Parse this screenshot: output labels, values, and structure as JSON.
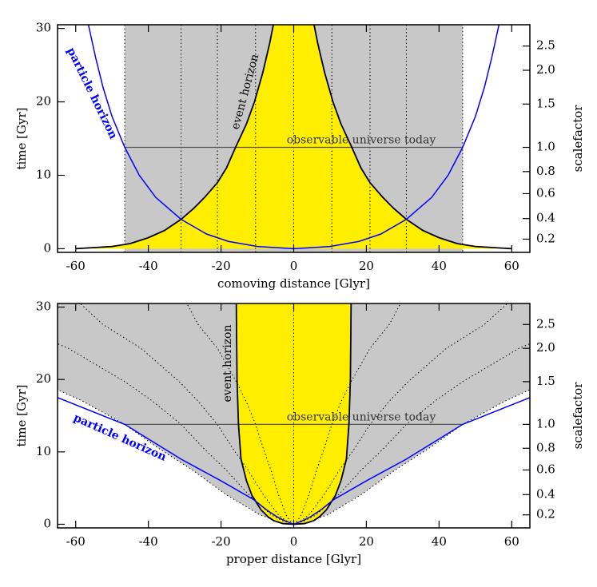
{
  "chart_data": [
    {
      "type": "line",
      "xlabel": "comoving distance [Glyr]",
      "ylabel": "time [Gyr]",
      "y2label": "scalefactor",
      "xlim": [
        -65,
        65
      ],
      "ylim": [
        -0.5,
        30.5
      ],
      "xticks": [
        -60,
        -40,
        -20,
        0,
        20,
        40,
        60
      ],
      "yticks": [
        0,
        10,
        20,
        30
      ],
      "y2ticks": [
        0.2,
        0.4,
        0.6,
        0.8,
        {
          "value": 1,
          "label": "1.0"
        },
        1.5,
        {
          "value": 2,
          "label": "2.0"
        },
        2.5
      ],
      "y2ticks_time": [
        1.3,
        4.1,
        7.5,
        10.5,
        13.8,
        19.7,
        24.3,
        27.6
      ],
      "shade": {
        "color": "#c8c8c8",
        "x": [
          -46.5,
          -46.5,
          46.5,
          46.5
        ],
        "y": [
          -0.5,
          30.5,
          30.5,
          -0.5
        ]
      },
      "worldlines": [
        {
          "x": [
            -31,
            -31
          ],
          "y": [
            -0.5,
            30.5
          ]
        },
        {
          "x": [
            -21,
            -21
          ],
          "y": [
            -0.5,
            30.5
          ]
        },
        {
          "x": [
            -10.5,
            -10.5
          ],
          "y": [
            -0.5,
            30.5
          ]
        },
        {
          "x": [
            0,
            0
          ],
          "y": [
            -0.5,
            30.5
          ]
        },
        {
          "x": [
            10.5,
            10.5
          ],
          "y": [
            -0.5,
            30.5
          ]
        },
        {
          "x": [
            21,
            21
          ],
          "y": [
            -0.5,
            30.5
          ]
        },
        {
          "x": [
            31,
            31
          ],
          "y": [
            -0.5,
            30.5
          ]
        }
      ],
      "today": {
        "label": "observable universe today",
        "x": [
          -46.5,
          46.5
        ],
        "y": 13.8
      },
      "series": [
        {
          "name": "event horizon",
          "color": "#000000",
          "fill": "#ffee00",
          "x": [
            -5.6,
            -6.6,
            -8.5,
            -10.8,
            -13,
            -16,
            -18.5,
            -21,
            -24.5,
            -27.5,
            -31,
            -35.5,
            -40,
            -45,
            -50,
            -60,
            null,
            60,
            50,
            45,
            40,
            35.5,
            31,
            27.5,
            24.5,
            21,
            18.5,
            16,
            13,
            10.8,
            8.5,
            6.6,
            5.6
          ],
          "y": [
            30.5,
            28,
            24,
            20,
            17,
            13.8,
            11,
            9,
            7,
            5.5,
            4,
            2.5,
            1.5,
            0.7,
            0.3,
            0,
            null,
            0,
            0.3,
            0.7,
            1.5,
            2.5,
            4,
            5.5,
            7,
            9,
            11,
            13.8,
            17,
            20,
            24,
            28,
            30.5
          ]
        },
        {
          "name": "particle horizon",
          "color": "#0000ff",
          "x": [
            -56.5,
            -54.5,
            -52.5,
            -50,
            -46.5,
            -42.5,
            -38,
            -31,
            -24,
            -18,
            -10,
            0,
            null,
            0,
            10,
            18,
            24,
            31,
            38,
            42.5,
            46.5,
            50,
            52.5,
            54.5,
            56.5
          ],
          "y": [
            30.5,
            26,
            22,
            18,
            13.8,
            10,
            7,
            4,
            2,
            1,
            0.3,
            0,
            null,
            0,
            0.3,
            1,
            2,
            4,
            7,
            10,
            13.8,
            18,
            22,
            26,
            30.5
          ]
        }
      ]
    },
    {
      "type": "line",
      "xlabel": "proper distance [Glyr]",
      "ylabel": "time [Gyr]",
      "y2label": "scalefactor",
      "xlim": [
        -65,
        65
      ],
      "ylim": [
        -0.5,
        30.5
      ],
      "xticks": [
        -60,
        -40,
        -20,
        0,
        20,
        40,
        60
      ],
      "yticks": [
        0,
        10,
        20,
        30
      ],
      "y2ticks": [
        0.2,
        0.4,
        0.6,
        0.8,
        {
          "value": 1,
          "label": "1.0"
        },
        1.5,
        {
          "value": 2,
          "label": "2.0"
        },
        2.5
      ],
      "y2ticks_time": [
        1.3,
        4.1,
        7.5,
        10.5,
        13.8,
        19.7,
        24.3,
        27.6
      ],
      "shade": {
        "color": "#c8c8c8",
        "x": [
          -69.8,
          -58.1,
          -46.5,
          -37.2,
          -27.9,
          -18.6,
          -9.3,
          -4.65,
          0,
          4.65,
          9.3,
          18.6,
          27.9,
          37.2,
          46.5,
          58.1,
          69.8,
          69.8,
          -69.8
        ],
        "y": [
          19.7,
          17,
          13.8,
          10.5,
          7.5,
          4.1,
          1.3,
          0.5,
          0,
          0.5,
          1.3,
          4.1,
          7.5,
          10.5,
          13.8,
          17,
          19.7,
          30.5,
          30.5
        ]
      },
      "worldlines": [
        {
          "x": [
            0,
            1.05,
            2.1,
            4.2,
            6.3,
            8.4,
            10.5,
            13.1,
            15.8,
            21,
            26.3,
            29.4
          ],
          "y": [
            0,
            0.5,
            1.3,
            4.1,
            7.5,
            10.5,
            13.8,
            17,
            19.7,
            24.3,
            27.6,
            30.5
          ]
        },
        {
          "x": [
            0,
            -1.05,
            -2.1,
            -4.2,
            -6.3,
            -8.4,
            -10.5,
            -13.1,
            -15.8,
            -21,
            -26.3,
            -29.4
          ],
          "y": [
            0,
            0.5,
            1.3,
            4.1,
            7.5,
            10.5,
            13.8,
            17,
            19.7,
            24.3,
            27.6,
            30.5
          ]
        },
        {
          "x": [
            0,
            2.1,
            4.2,
            8.4,
            12.6,
            16.8,
            21,
            26.3,
            31.5,
            42,
            52.5,
            58.8
          ],
          "y": [
            0,
            0.5,
            1.3,
            4.1,
            7.5,
            10.5,
            13.8,
            17,
            19.7,
            24.3,
            27.6,
            30.5
          ]
        },
        {
          "x": [
            0,
            -2.1,
            -4.2,
            -8.4,
            -12.6,
            -16.8,
            -21,
            -26.3,
            -31.5,
            -42,
            -52.5,
            -58.8
          ],
          "y": [
            0,
            0.5,
            1.3,
            4.1,
            7.5,
            10.5,
            13.8,
            17,
            19.7,
            24.3,
            27.6,
            30.5
          ]
        },
        {
          "x": [
            0,
            3.1,
            6.2,
            12.4,
            18.6,
            24.8,
            31,
            38.8,
            46.5,
            62,
            77.5
          ],
          "y": [
            0,
            0.5,
            1.3,
            4.1,
            7.5,
            10.5,
            13.8,
            17,
            19.7,
            24.3,
            27.6
          ]
        },
        {
          "x": [
            0,
            -3.1,
            -6.2,
            -12.4,
            -18.6,
            -24.8,
            -31,
            -38.8,
            -46.5,
            -62,
            -77.5
          ],
          "y": [
            0,
            0.5,
            1.3,
            4.1,
            7.5,
            10.5,
            13.8,
            17,
            19.7,
            24.3,
            27.6
          ]
        },
        {
          "x": [
            0,
            0
          ],
          "y": [
            0,
            30.5
          ]
        }
      ],
      "today": {
        "label": "observable universe today",
        "x": [
          -46.5,
          46.5
        ],
        "y": 13.8
      },
      "series": [
        {
          "name": "event horizon",
          "color": "#000000",
          "fill": "#ffee00",
          "x": [
            -15.8,
            -15.6,
            -15.2,
            -14.5,
            -13,
            -11.5,
            -9,
            -7,
            -5.5,
            -3,
            0,
            3,
            5.5,
            7,
            9,
            11.5,
            13,
            14.5,
            15.2,
            15.6,
            15.8
          ],
          "y": [
            30.5,
            20,
            13.8,
            9,
            6,
            4,
            2,
            1,
            0.5,
            0.1,
            0,
            0.1,
            0.5,
            1,
            2,
            4,
            6,
            9,
            13.8,
            20,
            30.5
          ]
        },
        {
          "name": "particle horizon",
          "color": "#0000ff",
          "x": [
            -65,
            -46.5,
            -31,
            -20,
            -11,
            -7.5,
            -4.5,
            -2.5,
            0,
            null,
            0,
            2.5,
            4.5,
            7.5,
            11,
            20,
            31,
            46.5,
            65
          ],
          "y": [
            17.5,
            13.8,
            9,
            6,
            3.4,
            2,
            1,
            0.5,
            0,
            null,
            0,
            0.5,
            1,
            2,
            3.4,
            6,
            9,
            13.8,
            17.5
          ]
        }
      ]
    }
  ]
}
